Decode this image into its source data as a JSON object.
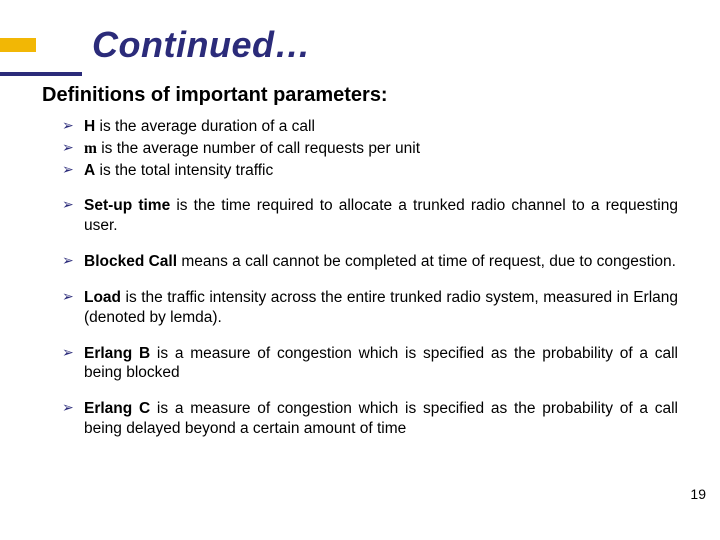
{
  "accent_bar_color": "#f2b705",
  "underline_color": "#2b2b7a",
  "title": "Continued…",
  "title_color": "#2b2b7a",
  "title_fontsize": 36,
  "subheading": "Definitions of important parameters:",
  "subheading_fontsize": 20,
  "body_fontsize": 15.5,
  "bullets": {
    "b1": {
      "bold": "H",
      "rest": " is the average duration of a call"
    },
    "b2": {
      "sym": "m",
      "rest": " is the average number of call requests per unit"
    },
    "b3": {
      "bold": "A",
      "rest": " is the total intensity traffic"
    },
    "b4": {
      "bold": "Set-up time",
      "rest": " is the time required to allocate a trunked radio channel to a requesting user."
    },
    "b5": {
      "bold": "Blocked Call",
      "rest": " means a call cannot be completed at time of request, due to congestion."
    },
    "b6": {
      "bold": "Load",
      "rest": " is the traffic intensity across the entire trunked radio system, measured in Erlang (denoted by lemda)."
    },
    "b7": {
      "bold": "Erlang B",
      "rest": " is a measure of congestion which is specified as the probability of a call being blocked"
    },
    "b8": {
      "bold": "Erlang C",
      "rest": " is a measure of congestion which is specified as the probability of a call being delayed beyond a certain amount of time"
    }
  },
  "page_number": "19"
}
